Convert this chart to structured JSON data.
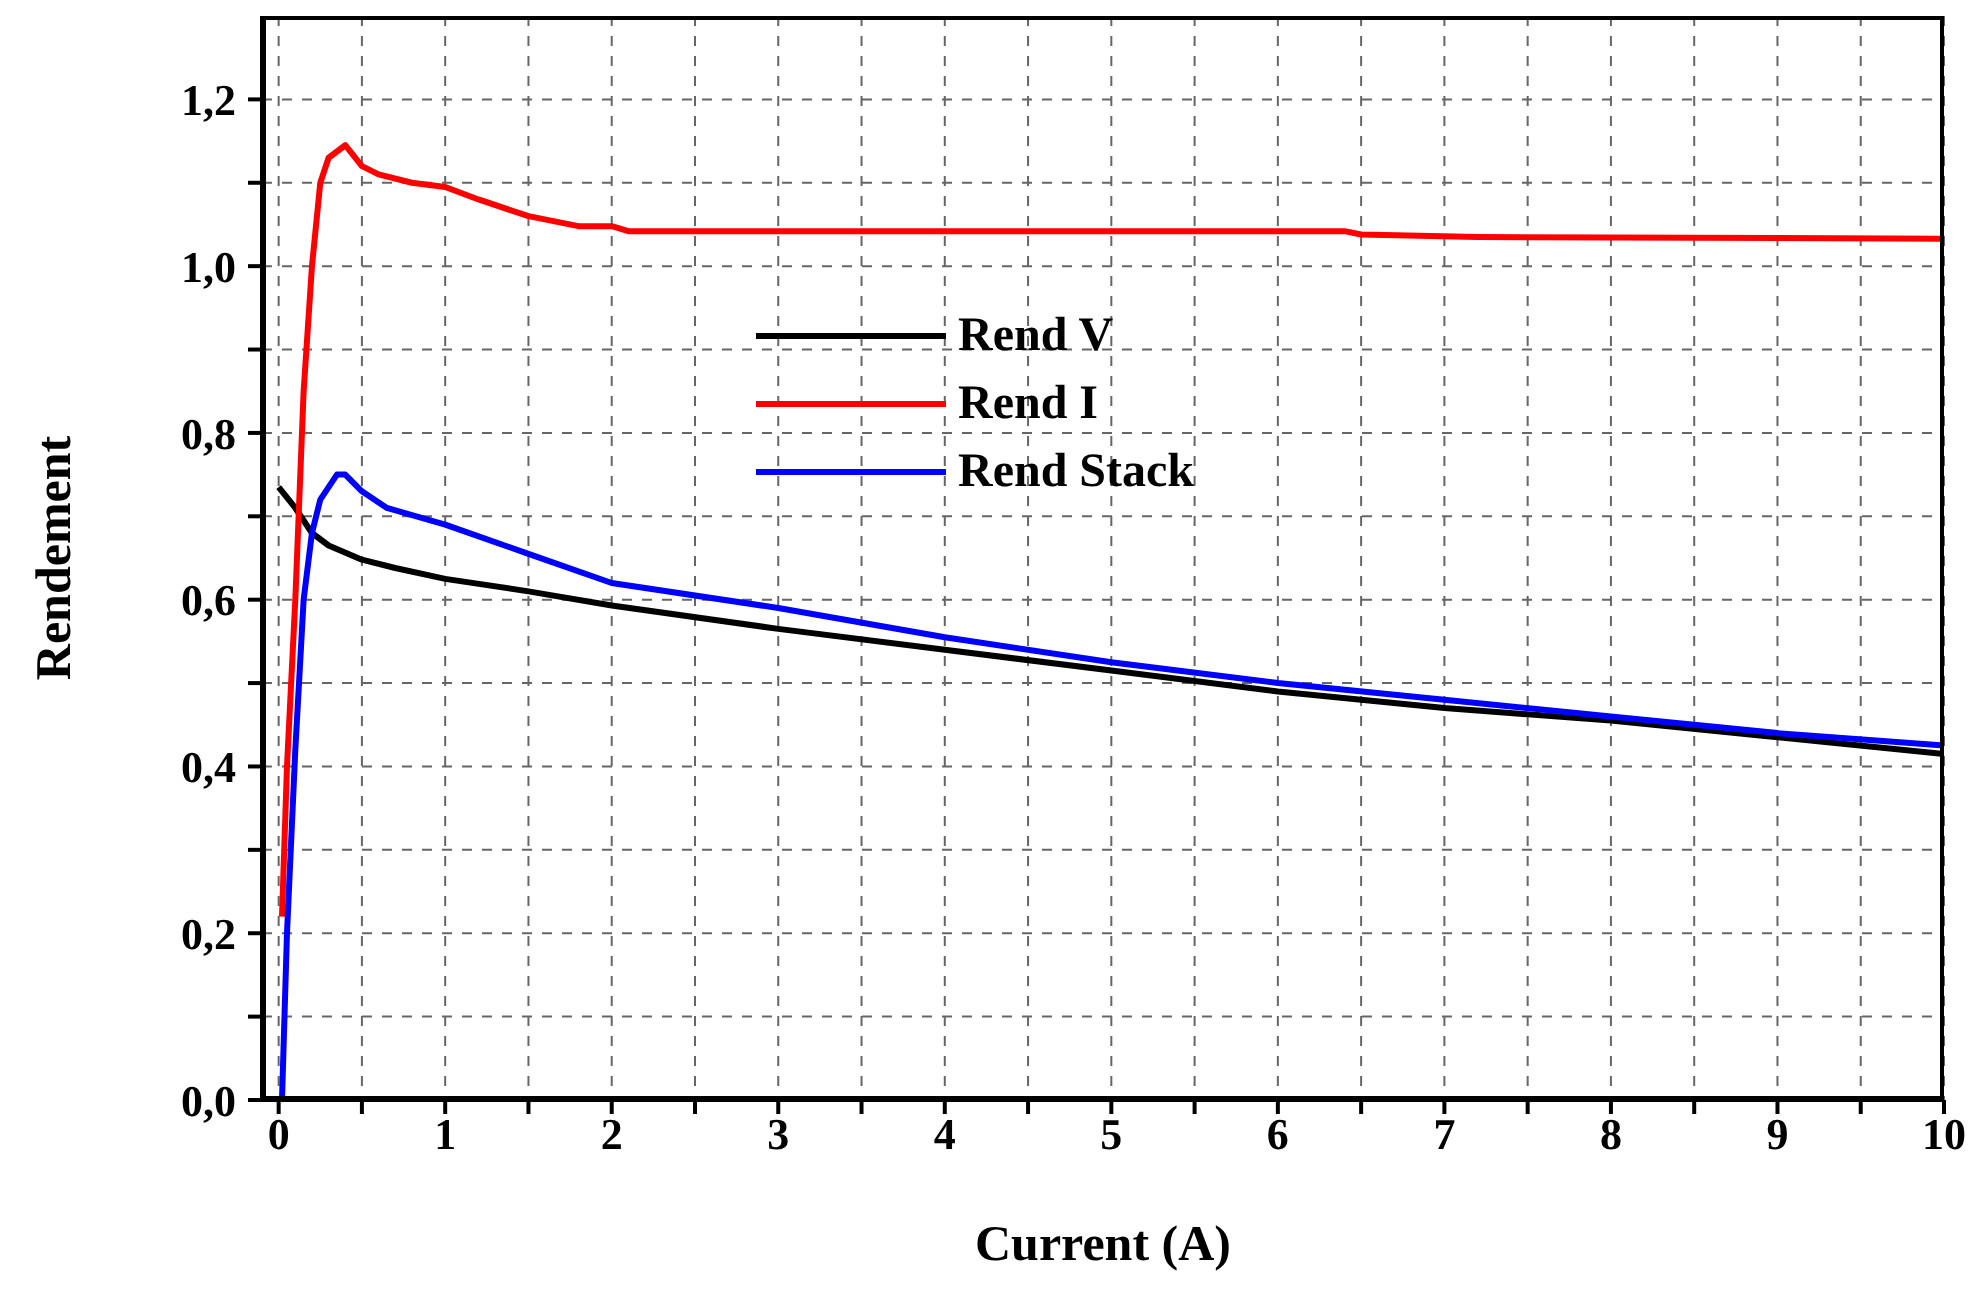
{
  "chart_data": {
    "type": "line",
    "xlabel": "Current (A)",
    "ylabel": "Rendement",
    "xlim": [
      -0.1,
      10
    ],
    "ylim": [
      0,
      1.3
    ],
    "xticks": [
      0,
      {
        "value": 0.5,
        "label": null
      },
      1,
      {
        "value": 1.5,
        "label": null
      },
      2,
      {
        "value": 2.5,
        "label": null
      },
      3,
      {
        "value": 3.5,
        "label": null
      },
      4,
      {
        "value": 4.5,
        "label": null
      },
      5,
      {
        "value": 5.5,
        "label": null
      },
      6,
      {
        "value": 6.5,
        "label": null
      },
      7,
      {
        "value": 7.5,
        "label": null
      },
      8,
      {
        "value": 8.5,
        "label": null
      },
      9,
      {
        "value": 9.5,
        "label": null
      },
      10
    ],
    "yticks": [
      {
        "value": 0,
        "label": "0,0"
      },
      {
        "value": 0.1,
        "label": null
      },
      {
        "value": 0.2,
        "label": "0,2"
      },
      {
        "value": 0.3,
        "label": null
      },
      {
        "value": 0.4,
        "label": "0,4"
      },
      {
        "value": 0.5,
        "label": null
      },
      {
        "value": 0.6,
        "label": "0,6"
      },
      {
        "value": 0.7,
        "label": null
      },
      {
        "value": 0.8,
        "label": "0,8"
      },
      {
        "value": 0.9,
        "label": null
      },
      {
        "value": 1.0,
        "label": "1,0"
      },
      {
        "value": 1.1,
        "label": null
      },
      {
        "value": 1.2,
        "label": "1,2"
      }
    ],
    "grid": true,
    "legend": "top",
    "marker": "none",
    "line_style": "solid",
    "series": [
      {
        "name": "Rend V",
        "color": "#000000",
        "x": [
          0,
          0.1,
          0.2,
          0.3,
          0.5,
          0.7,
          1,
          1.5,
          2,
          3,
          4,
          5,
          6,
          7,
          8,
          9,
          10
        ],
        "values": [
          0.735,
          0.71,
          0.68,
          0.665,
          0.648,
          0.638,
          0.625,
          0.61,
          0.593,
          0.565,
          0.54,
          0.515,
          0.49,
          0.47,
          0.455,
          0.435,
          0.415
        ]
      },
      {
        "name": "Rend I",
        "color": "#ff0000",
        "x": [
          0.02,
          0.05,
          0.1,
          0.15,
          0.2,
          0.25,
          0.3,
          0.4,
          0.5,
          0.6,
          0.8,
          1,
          1.2,
          1.5,
          1.8,
          2,
          2.1,
          4,
          6.4,
          6.5,
          7.2,
          10
        ],
        "values": [
          0.22,
          0.4,
          0.6,
          0.85,
          1.0,
          1.1,
          1.13,
          1.145,
          1.12,
          1.11,
          1.1,
          1.095,
          1.08,
          1.06,
          1.048,
          1.048,
          1.042,
          1.042,
          1.042,
          1.038,
          1.035,
          1.033
        ]
      },
      {
        "name": "Rend Stack",
        "color": "#0000ff",
        "x": [
          0.02,
          0.05,
          0.1,
          0.15,
          0.2,
          0.25,
          0.35,
          0.4,
          0.5,
          0.65,
          1,
          1.5,
          2,
          3,
          4,
          5,
          6,
          7,
          8,
          9,
          10
        ],
        "values": [
          0,
          0.2,
          0.42,
          0.6,
          0.68,
          0.72,
          0.75,
          0.75,
          0.73,
          0.71,
          0.69,
          0.655,
          0.62,
          0.59,
          0.555,
          0.525,
          0.5,
          0.48,
          0.46,
          0.44,
          0.425
        ]
      }
    ]
  }
}
